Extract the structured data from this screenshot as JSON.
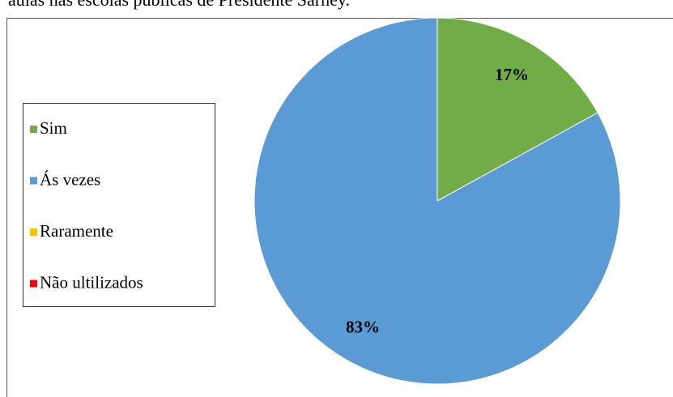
{
  "chart_data": {
    "type": "pie",
    "title": "aulas nas escolas públicas de Presidente Sarney.",
    "categories": [
      "Sim",
      "Ás vezes",
      "Raramente",
      "Não ultilizados"
    ],
    "values": [
      17,
      83,
      0,
      0
    ],
    "value_labels": [
      "17%",
      "83%",
      null,
      null
    ],
    "colors": [
      "#70ad47",
      "#5b9bd5",
      "#ffc000",
      "#ff0000"
    ],
    "legend": "left"
  }
}
